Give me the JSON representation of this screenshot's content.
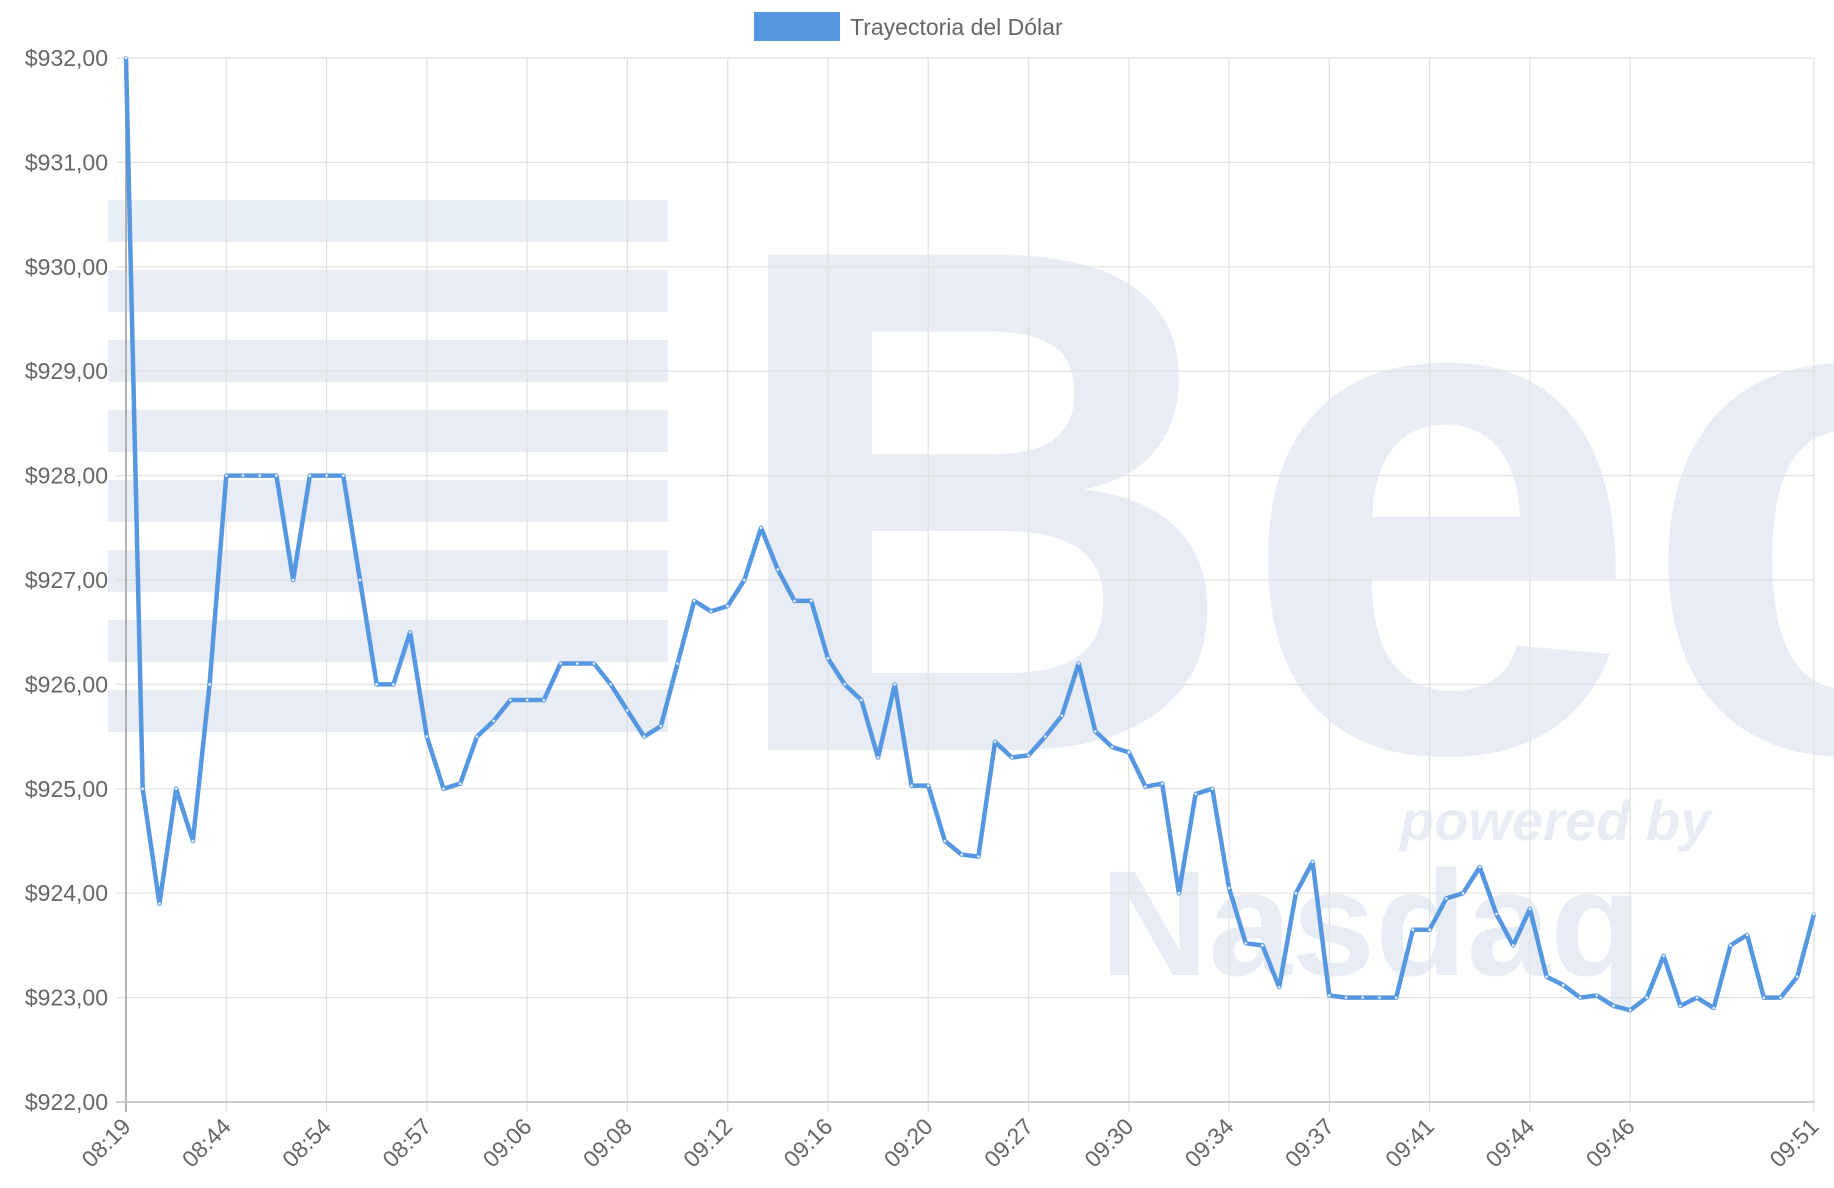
{
  "chart_data": {
    "type": "line",
    "legend_position": "top",
    "grid": true,
    "watermark": [
      "Bec",
      "powered by",
      "Nasdaq"
    ],
    "categories": [
      "08:19",
      null,
      null,
      null,
      null,
      null,
      "08:44",
      null,
      null,
      null,
      null,
      null,
      "08:54",
      null,
      null,
      null,
      null,
      null,
      "08:57",
      null,
      null,
      null,
      null,
      null,
      "09:06",
      null,
      null,
      null,
      null,
      null,
      "09:08",
      null,
      null,
      null,
      null,
      null,
      "09:12",
      null,
      null,
      null,
      null,
      null,
      "09:16",
      null,
      null,
      null,
      null,
      null,
      "09:20",
      null,
      null,
      null,
      null,
      null,
      "09:27",
      null,
      null,
      null,
      null,
      null,
      "09:30",
      null,
      null,
      null,
      null,
      null,
      "09:34",
      null,
      null,
      null,
      null,
      null,
      "09:37",
      null,
      null,
      null,
      null,
      null,
      "09:41",
      null,
      null,
      null,
      null,
      null,
      "09:44",
      null,
      null,
      null,
      null,
      null,
      "09:46",
      null,
      null,
      null,
      null,
      null,
      null,
      null,
      null,
      null,
      null,
      "09:51"
    ],
    "series": [
      {
        "name": "Trayectoria del Dólar",
        "color": "#5597e0",
        "values": [
          932,
          925,
          923.9,
          925,
          924.5,
          926,
          928,
          928,
          928,
          928,
          927,
          928,
          928,
          928,
          927,
          926,
          926,
          926.5,
          925.5,
          925,
          925.05,
          925.5,
          925.65,
          925.85,
          925.85,
          925.85,
          926.2,
          926.2,
          926.2,
          926,
          925.75,
          925.5,
          925.6,
          926.2,
          926.8,
          926.7,
          926.75,
          927,
          927.5,
          927.1,
          926.8,
          926.8,
          926.25,
          926,
          925.85,
          925.3,
          926,
          925.03,
          925.03,
          924.5,
          924.37,
          924.35,
          925.45,
          925.3,
          925.32,
          925.5,
          925.7,
          926.2,
          925.55,
          925.4,
          925.35,
          925.02,
          925.05,
          924,
          924.95,
          925,
          924.05,
          923.52,
          923.5,
          923.1,
          924,
          924.3,
          923.02,
          923,
          923,
          923,
          923,
          923.65,
          923.65,
          923.95,
          924,
          924.25,
          923.8,
          923.5,
          923.85,
          923.2,
          923.12,
          923,
          923.02,
          922.92,
          922.88,
          923,
          923.4,
          922.92,
          923,
          922.9,
          923.5,
          923.6,
          923,
          923,
          923.2,
          923.8
        ]
      }
    ],
    "ylim": [
      922,
      932
    ],
    "yticks": [
      {
        "value": 922,
        "label": "$922,00"
      },
      {
        "value": 923,
        "label": "$923,00"
      },
      {
        "value": 924,
        "label": "$924,00"
      },
      {
        "value": 925,
        "label": "$925,00"
      },
      {
        "value": 926,
        "label": "$926,00"
      },
      {
        "value": 927,
        "label": "$927,00"
      },
      {
        "value": 928,
        "label": "$928,00"
      },
      {
        "value": 929,
        "label": "$929,00"
      },
      {
        "value": 930,
        "label": "$930,00"
      },
      {
        "value": 931,
        "label": "$931,00"
      },
      {
        "value": 932,
        "label": "$932,00"
      }
    ]
  }
}
